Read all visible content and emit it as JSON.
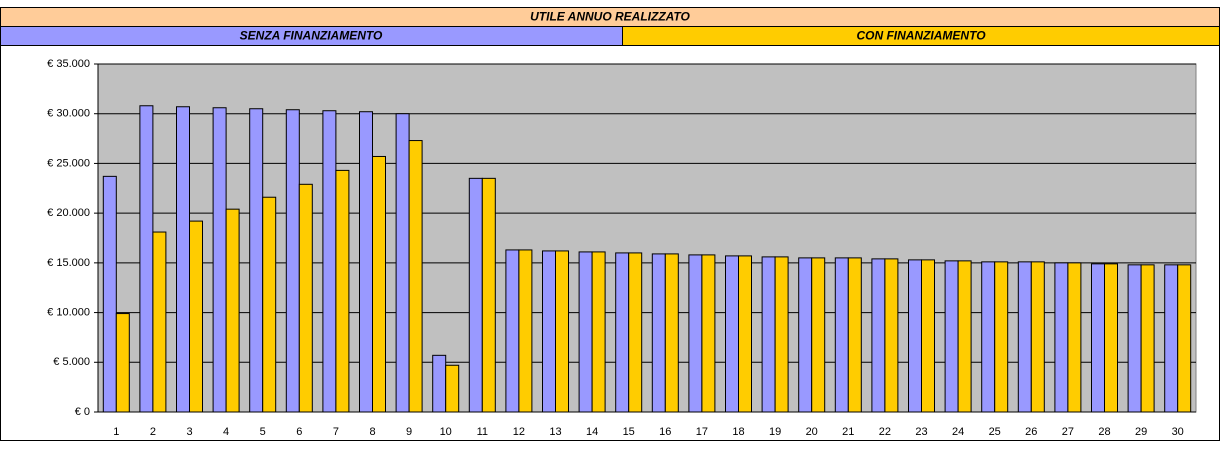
{
  "chart_data": {
    "type": "bar",
    "title": "UTILE ANNUO REALIZZATO",
    "categories": [
      1,
      2,
      3,
      4,
      5,
      6,
      7,
      8,
      9,
      10,
      11,
      12,
      13,
      14,
      15,
      16,
      17,
      18,
      19,
      20,
      21,
      22,
      23,
      24,
      25,
      26,
      27,
      28,
      29,
      30
    ],
    "series": [
      {
        "name": "SENZA FINANZIAMENTO",
        "color": "#9999ff",
        "values": [
          23700,
          30800,
          30700,
          30600,
          30500,
          30400,
          30300,
          30200,
          30000,
          5700,
          23500,
          16300,
          16200,
          16100,
          16000,
          15900,
          15800,
          15700,
          15600,
          15500,
          15500,
          15400,
          15300,
          15200,
          15100,
          15100,
          15000,
          14900,
          14800,
          14800
        ]
      },
      {
        "name": "CON FINANZIAMENTO",
        "color": "#ffcc00",
        "values": [
          9900,
          18100,
          19200,
          20400,
          21600,
          22900,
          24300,
          25700,
          27300,
          4700,
          23500,
          16300,
          16200,
          16100,
          16000,
          15900,
          15800,
          15700,
          15600,
          15500,
          15500,
          15400,
          15300,
          15200,
          15100,
          15100,
          15000,
          14900,
          14800,
          14800
        ]
      }
    ],
    "ylim": [
      0,
      35000
    ],
    "yticks": [
      {
        "value": 0,
        "label": "€ 0"
      },
      {
        "value": 5000,
        "label": "€ 5.000"
      },
      {
        "value": 10000,
        "label": "€ 10.000"
      },
      {
        "value": 15000,
        "label": "€ 15.000"
      },
      {
        "value": 20000,
        "label": "€ 20.000"
      },
      {
        "value": 25000,
        "label": "€ 25.000"
      },
      {
        "value": 30000,
        "label": "€ 30.000"
      },
      {
        "value": 35000,
        "label": "€ 35.000"
      }
    ],
    "grid": true,
    "plot_background": "#c0c0c0",
    "title_background": "#ffcc99"
  }
}
